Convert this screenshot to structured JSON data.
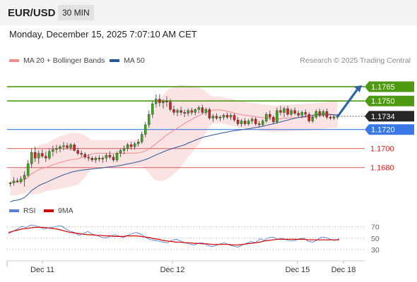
{
  "header": {
    "symbol": "EUR/USD",
    "timeframe": "30 MIN"
  },
  "timestamp": "Monday, December 15, 2025 7:07:10 AM CET",
  "legend": {
    "bollinger": {
      "label": "MA 20 + Bollinger Bands",
      "color": "#f08c8c"
    },
    "ma50": {
      "label": "MA 50",
      "color": "#2b5797"
    }
  },
  "credit": "Research © 2025 Trading Central",
  "rsi_legend": {
    "rsi": {
      "label": "RSI",
      "color": "#5b7fd8"
    },
    "ma9": {
      "label": "9MA",
      "color": "#d40000"
    }
  },
  "chart_data": [
    {
      "type": "candlestick",
      "title": "EUR/USD",
      "ylim": [
        1.1645,
        1.1782
      ],
      "x_tick_labels": [
        "Dec 11",
        "Dec 12",
        "Dec 15",
        "Dec 18"
      ],
      "current_price": 1.1734,
      "price_levels": [
        {
          "value": 1.1765,
          "label": "1.1765",
          "kind": "resistance",
          "color": "#4f9a13"
        },
        {
          "value": 1.175,
          "label": "1.1750",
          "kind": "resistance",
          "color": "#4f9a13"
        },
        {
          "value": 1.1734,
          "label": "1.1734",
          "kind": "current",
          "color": "#262626"
        },
        {
          "value": 1.172,
          "label": "1.1720",
          "kind": "pivot",
          "color": "#3a78e7"
        },
        {
          "value": 1.17,
          "label": "1.1700",
          "kind": "support",
          "color": "#e06a6a"
        },
        {
          "value": 1.168,
          "label": "1.1680",
          "kind": "support",
          "color": "#e06a6a"
        }
      ],
      "projection": {
        "from": 1.1734,
        "to": 1.1765,
        "direction": "up",
        "color": "#2e65a8"
      },
      "candles": [
        [
          1.1663,
          1.1665,
          1.166,
          1.1664
        ],
        [
          1.1664,
          1.167,
          1.1661,
          1.1666
        ],
        [
          1.1666,
          1.1669,
          1.1664,
          1.1665
        ],
        [
          1.1665,
          1.1671,
          1.1663,
          1.1668
        ],
        [
          1.1668,
          1.1676,
          1.166,
          1.1672
        ],
        [
          1.1672,
          1.1688,
          1.167,
          1.1684
        ],
        [
          1.1684,
          1.17,
          1.168,
          1.1696
        ],
        [
          1.1696,
          1.1702,
          1.1686,
          1.169
        ],
        [
          1.169,
          1.1698,
          1.1684,
          1.1695
        ],
        [
          1.1695,
          1.1699,
          1.169,
          1.1692
        ],
        [
          1.1692,
          1.1697,
          1.1686,
          1.169
        ],
        [
          1.169,
          1.17,
          1.1688,
          1.1697
        ],
        [
          1.1697,
          1.1703,
          1.1692,
          1.1699
        ],
        [
          1.1699,
          1.1704,
          1.1695,
          1.17
        ],
        [
          1.17,
          1.1704,
          1.1696,
          1.1702
        ],
        [
          1.1702,
          1.1707,
          1.1698,
          1.1703
        ],
        [
          1.1703,
          1.1706,
          1.1699,
          1.1701
        ],
        [
          1.1701,
          1.1706,
          1.1698,
          1.1704
        ],
        [
          1.1704,
          1.1706,
          1.1697,
          1.1698
        ],
        [
          1.1698,
          1.1701,
          1.1693,
          1.1695
        ],
        [
          1.1695,
          1.1698,
          1.1691,
          1.1694
        ],
        [
          1.1694,
          1.1696,
          1.1689,
          1.1691
        ],
        [
          1.1691,
          1.1694,
          1.1687,
          1.169
        ],
        [
          1.169,
          1.1692,
          1.1686,
          1.1688
        ],
        [
          1.1688,
          1.1692,
          1.1685,
          1.169
        ],
        [
          1.169,
          1.1693,
          1.1686,
          1.1689
        ],
        [
          1.1689,
          1.1692,
          1.1685,
          1.169
        ],
        [
          1.169,
          1.1695,
          1.1686,
          1.1693
        ],
        [
          1.1693,
          1.1697,
          1.1689,
          1.1691
        ],
        [
          1.1691,
          1.1694,
          1.1686,
          1.1688
        ],
        [
          1.1688,
          1.1697,
          1.1686,
          1.1695
        ],
        [
          1.1695,
          1.17,
          1.1691,
          1.1698
        ],
        [
          1.1698,
          1.1703,
          1.1694,
          1.17
        ],
        [
          1.17,
          1.1706,
          1.1697,
          1.1704
        ],
        [
          1.1704,
          1.1707,
          1.1699,
          1.1702
        ],
        [
          1.1702,
          1.1707,
          1.1699,
          1.1705
        ],
        [
          1.1705,
          1.171,
          1.1702,
          1.1707
        ],
        [
          1.1707,
          1.1718,
          1.1705,
          1.1715
        ],
        [
          1.1715,
          1.1728,
          1.1712,
          1.1725
        ],
        [
          1.1725,
          1.174,
          1.1722,
          1.1736
        ],
        [
          1.1736,
          1.175,
          1.1732,
          1.1747
        ],
        [
          1.1747,
          1.1757,
          1.1743,
          1.1752
        ],
        [
          1.1752,
          1.1757,
          1.1744,
          1.1748
        ],
        [
          1.1748,
          1.1752,
          1.1742,
          1.175
        ],
        [
          1.175,
          1.1755,
          1.1744,
          1.1749
        ],
        [
          1.1749,
          1.1752,
          1.1739,
          1.1741
        ],
        [
          1.1741,
          1.1745,
          1.1735,
          1.1738
        ],
        [
          1.1738,
          1.1742,
          1.1734,
          1.174
        ],
        [
          1.174,
          1.1744,
          1.1735,
          1.1738
        ],
        [
          1.1738,
          1.1741,
          1.1733,
          1.1737
        ],
        [
          1.1737,
          1.1742,
          1.1734,
          1.174
        ],
        [
          1.174,
          1.1743,
          1.1735,
          1.1738
        ],
        [
          1.1738,
          1.1742,
          1.1735,
          1.1741
        ],
        [
          1.1741,
          1.1745,
          1.1737,
          1.1743
        ],
        [
          1.1743,
          1.1746,
          1.1736,
          1.1738
        ],
        [
          1.1738,
          1.1743,
          1.1735,
          1.1741
        ],
        [
          1.1741,
          1.1743,
          1.173,
          1.1732
        ],
        [
          1.1732,
          1.1736,
          1.1728,
          1.1734
        ],
        [
          1.1734,
          1.1737,
          1.173,
          1.1732
        ],
        [
          1.1732,
          1.1735,
          1.1729,
          1.1733
        ],
        [
          1.1733,
          1.1737,
          1.173,
          1.1735
        ],
        [
          1.1735,
          1.1738,
          1.1731,
          1.1733
        ],
        [
          1.1733,
          1.1737,
          1.173,
          1.1735
        ],
        [
          1.1735,
          1.1737,
          1.1728,
          1.173
        ],
        [
          1.173,
          1.1733,
          1.1724,
          1.1726
        ],
        [
          1.1726,
          1.1731,
          1.1723,
          1.1729
        ],
        [
          1.1729,
          1.1732,
          1.1724,
          1.1726
        ],
        [
          1.1726,
          1.1731,
          1.1724,
          1.1729
        ],
        [
          1.1729,
          1.1733,
          1.1726,
          1.1731
        ],
        [
          1.1731,
          1.1733,
          1.1724,
          1.1726
        ],
        [
          1.1726,
          1.1729,
          1.1722,
          1.1725
        ],
        [
          1.1725,
          1.1731,
          1.1723,
          1.1729
        ],
        [
          1.1729,
          1.1738,
          1.1727,
          1.1736
        ],
        [
          1.1736,
          1.174,
          1.173,
          1.1733
        ],
        [
          1.1733,
          1.1735,
          1.1726,
          1.1728
        ],
        [
          1.1728,
          1.1743,
          1.1726,
          1.174
        ],
        [
          1.174,
          1.1745,
          1.1735,
          1.1738
        ],
        [
          1.1738,
          1.1744,
          1.1733,
          1.1742
        ],
        [
          1.1742,
          1.1745,
          1.1734,
          1.1736
        ],
        [
          1.1736,
          1.1742,
          1.1734,
          1.174
        ],
        [
          1.174,
          1.1743,
          1.1735,
          1.1737
        ],
        [
          1.1737,
          1.174,
          1.1733,
          1.1735
        ],
        [
          1.1735,
          1.174,
          1.1732,
          1.1738
        ],
        [
          1.1738,
          1.1741,
          1.1733,
          1.1736
        ],
        [
          1.1736,
          1.1738,
          1.1727,
          1.1729
        ],
        [
          1.1729,
          1.1735,
          1.1727,
          1.1733
        ],
        [
          1.1733,
          1.1741,
          1.1731,
          1.1739
        ],
        [
          1.1739,
          1.1742,
          1.1733,
          1.1735
        ],
        [
          1.1735,
          1.1741,
          1.1733,
          1.1739
        ],
        [
          1.1739,
          1.1742,
          1.1731,
          1.1733
        ],
        [
          1.1733,
          1.1735,
          1.173,
          1.1732
        ],
        [
          1.1732,
          1.1735,
          1.173,
          1.1733
        ],
        [
          1.1733,
          1.1736,
          1.1731,
          1.1734
        ]
      ]
    },
    {
      "type": "line",
      "title": "RSI",
      "ylim": [
        20,
        82
      ],
      "y_ticks": [
        70,
        50,
        30
      ],
      "x_tick_labels": [
        "Dec 11",
        "Dec 12",
        "Dec 15",
        "Dec 18"
      ],
      "series": [
        {
          "name": "RSI",
          "color": "#5b7fd8",
          "values": [
            58,
            62,
            66,
            71,
            69,
            73,
            72,
            70,
            66,
            68,
            69,
            71,
            72,
            66,
            62,
            60,
            55,
            58,
            62,
            57,
            55,
            52,
            50,
            53,
            56,
            54,
            51,
            55,
            58,
            60,
            57,
            52,
            48,
            46,
            45,
            43,
            42,
            46,
            48,
            45,
            42,
            40,
            38,
            41,
            42,
            38,
            35,
            37,
            40,
            42,
            38,
            36,
            34,
            38,
            41,
            44,
            42,
            49,
            46,
            51,
            52,
            48,
            50,
            47,
            45,
            46,
            49,
            50,
            44,
            43,
            47,
            52,
            51,
            48,
            46,
            49
          ]
        },
        {
          "name": "9MA",
          "color": "#d40000",
          "values": [
            60,
            62,
            64,
            66,
            67,
            68,
            69,
            69,
            69,
            68,
            67,
            66,
            64,
            62,
            60,
            59,
            58,
            57,
            56,
            56,
            55,
            55,
            54,
            54,
            53,
            53,
            53,
            54,
            54,
            54,
            53,
            52,
            51,
            49,
            48,
            46,
            45,
            44,
            43,
            43,
            42,
            42,
            41,
            41,
            40,
            40,
            39,
            39,
            39,
            39,
            39,
            38,
            38,
            39,
            40,
            41,
            42,
            43,
            45,
            46,
            47,
            48,
            48,
            48,
            48,
            48,
            48,
            48,
            47,
            47,
            47,
            47,
            47,
            47,
            47,
            47
          ]
        }
      ]
    }
  ]
}
